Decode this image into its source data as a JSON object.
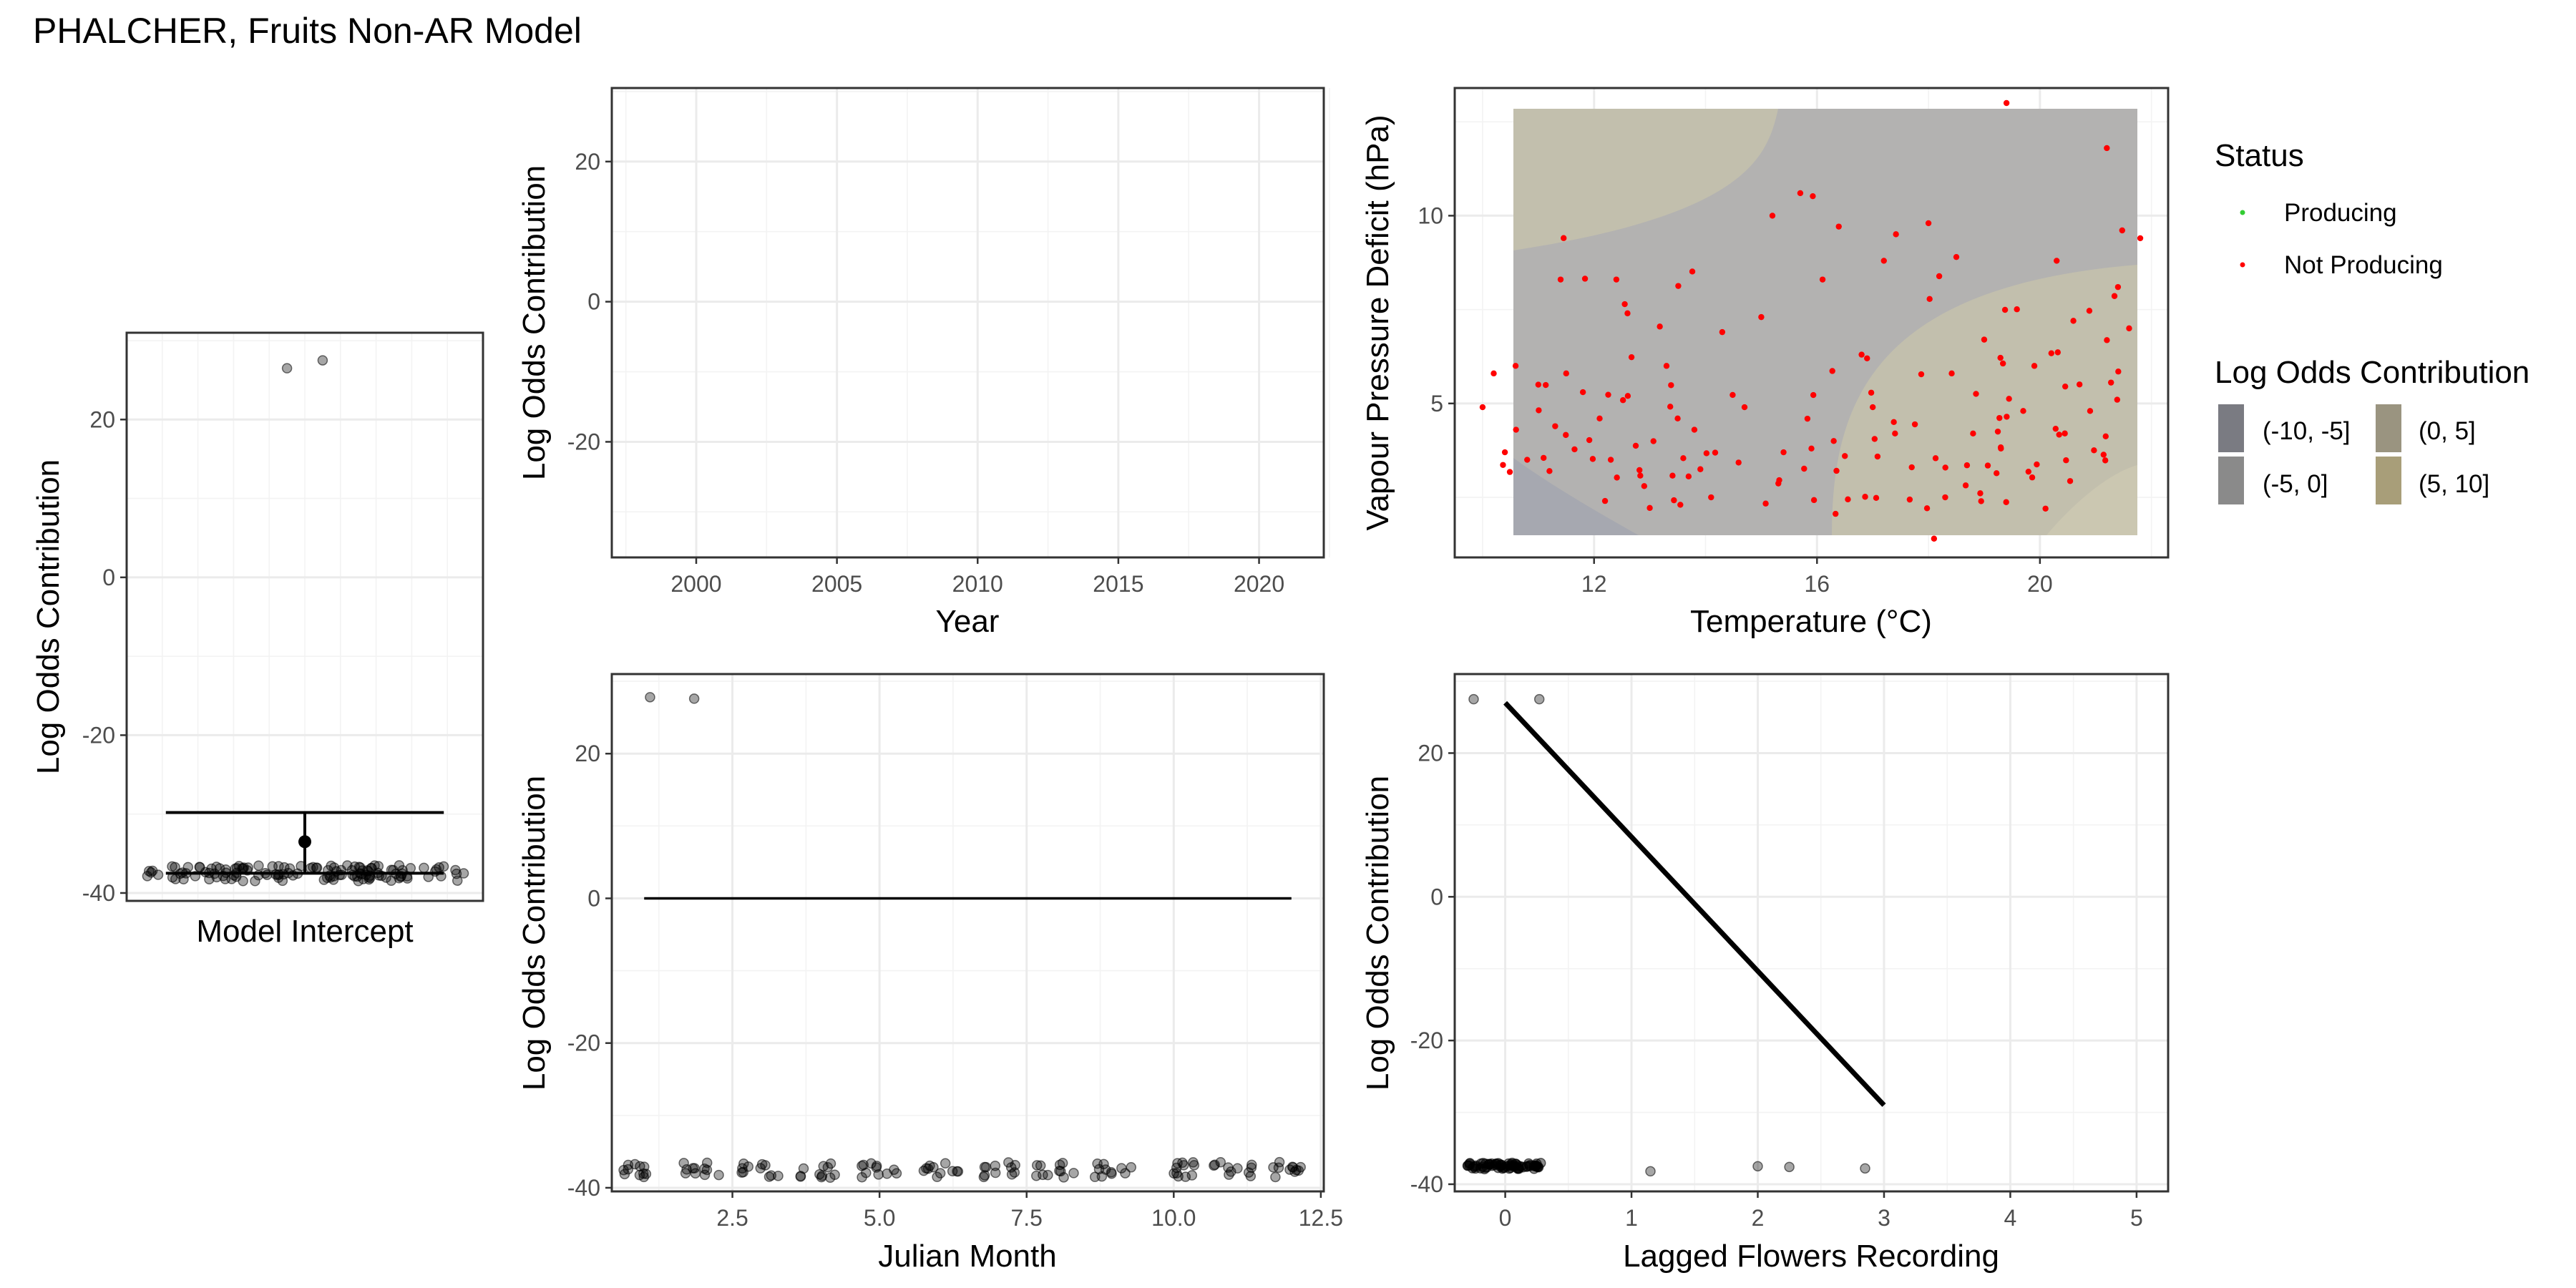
{
  "figure_title": "PHALCHER, Fruits Non-AR Model",
  "colors": {
    "grid": "#ebebeb",
    "frame": "#333333",
    "points": "#000000",
    "producing": "#33cc33",
    "not_producing": "#ff0000",
    "fill_neg10_neg5": "#7a7b82",
    "fill_neg5_0": "#8a8a8a",
    "fill_0_5": "#9a9480",
    "fill_5_10": "#a89e79"
  },
  "legend": {
    "status_title": "Status",
    "status_items": [
      {
        "label": "Producing",
        "color": "#33cc33"
      },
      {
        "label": "Not Producing",
        "color": "#ff0000"
      }
    ],
    "fill_title": "Log Odds Contribution",
    "fill_items": [
      {
        "label": "(-10, -5]",
        "color": "#7a7b82"
      },
      {
        "label": "(0, 5]",
        "color": "#9a9480"
      },
      {
        "label": "(-5, 0]",
        "color": "#8a8a8a"
      },
      {
        "label": "(5, 10]",
        "color": "#a89e79"
      }
    ]
  },
  "chart_data": [
    {
      "id": "intercept",
      "type": "scatter",
      "xlabel": "Model Intercept",
      "ylabel": "Log Odds Contribution",
      "ylim": [
        -41,
        31
      ],
      "yticks": [
        -40,
        -20,
        0,
        20
      ],
      "points_summary": "about 130 jittered points between -38.5 and -36.5",
      "points": [
        {
          "x": -0.05,
          "y": 26.5
        },
        {
          "x": 0.05,
          "y": 27.5
        }
      ],
      "error_bar": {
        "center": -33.5,
        "low": -37.5,
        "high": -29.8
      },
      "grid": true
    },
    {
      "id": "year",
      "type": "line",
      "xlabel": "Year",
      "ylabel": "Log Odds Contribution",
      "xlim": [
        1997,
        2022.3
      ],
      "xticks": [
        2000,
        2005,
        2010,
        2015,
        2020
      ],
      "ylim": [
        -36.5,
        30.5
      ],
      "yticks": [
        -20,
        0,
        20
      ],
      "series": [],
      "grid": true
    },
    {
      "id": "temp_vpd",
      "type": "heatmap",
      "xlabel": "Temperature (°C)",
      "ylabel": "Vapour Pressure Deficit (hPa)",
      "xlim": [
        9.5,
        22.3
      ],
      "xticks": [
        12,
        16,
        20
      ],
      "ylim": [
        0.9,
        13.4
      ],
      "yticks": [
        5,
        10
      ],
      "surface_extent": {
        "x": [
          10,
          21.8
        ],
        "y": [
          1.4,
          13
        ]
      },
      "points_summary": "about 160 points, all Not Producing",
      "points": [
        {
          "x": 10.0,
          "y": 4.9
        },
        {
          "x": 10.2,
          "y": 5.8
        },
        {
          "x": 10.4,
          "y": 3.7
        },
        {
          "x": 10.6,
          "y": 4.3
        },
        {
          "x": 10.8,
          "y": 3.5
        },
        {
          "x": 11.0,
          "y": 5.5
        },
        {
          "x": 11.2,
          "y": 3.2
        },
        {
          "x": 11.4,
          "y": 8.3
        },
        {
          "x": 11.5,
          "y": 5.8
        },
        {
          "x": 11.8,
          "y": 5.3
        },
        {
          "x": 12.1,
          "y": 4.6
        },
        {
          "x": 12.3,
          "y": 3.5
        },
        {
          "x": 12.4,
          "y": 8.3
        },
        {
          "x": 12.6,
          "y": 7.4
        },
        {
          "x": 12.9,
          "y": 2.8
        },
        {
          "x": 13.3,
          "y": 6.0
        },
        {
          "x": 13.5,
          "y": 4.6
        },
        {
          "x": 13.8,
          "y": 4.3
        },
        {
          "x": 14.1,
          "y": 2.5
        },
        {
          "x": 14.3,
          "y": 6.9
        },
        {
          "x": 14.7,
          "y": 4.9
        },
        {
          "x": 15.0,
          "y": 7.3
        },
        {
          "x": 15.2,
          "y": 10.0
        },
        {
          "x": 15.4,
          "y": 3.7
        },
        {
          "x": 15.7,
          "y": 10.6
        },
        {
          "x": 15.9,
          "y": 3.8
        },
        {
          "x": 16.1,
          "y": 8.3
        },
        {
          "x": 16.3,
          "y": 4.0
        },
        {
          "x": 16.5,
          "y": 3.6
        },
        {
          "x": 16.8,
          "y": 6.3
        },
        {
          "x": 17.0,
          "y": 4.9
        },
        {
          "x": 17.2,
          "y": 8.8
        },
        {
          "x": 17.4,
          "y": 4.2
        },
        {
          "x": 17.7,
          "y": 3.3
        },
        {
          "x": 18.0,
          "y": 9.8
        },
        {
          "x": 18.1,
          "y": 1.4
        },
        {
          "x": 18.3,
          "y": 2.5
        },
        {
          "x": 18.5,
          "y": 8.9
        },
        {
          "x": 18.8,
          "y": 4.2
        },
        {
          "x": 19.0,
          "y": 6.7
        },
        {
          "x": 19.3,
          "y": 3.8
        },
        {
          "x": 19.4,
          "y": 13.0
        },
        {
          "x": 19.7,
          "y": 4.8
        },
        {
          "x": 19.9,
          "y": 6.0
        },
        {
          "x": 20.1,
          "y": 2.2
        },
        {
          "x": 20.3,
          "y": 8.8
        },
        {
          "x": 20.6,
          "y": 7.2
        },
        {
          "x": 20.9,
          "y": 4.8
        },
        {
          "x": 21.2,
          "y": 11.8
        },
        {
          "x": 21.4,
          "y": 8.1
        },
        {
          "x": 21.6,
          "y": 7.0
        },
        {
          "x": 21.8,
          "y": 9.4
        }
      ],
      "grid": true
    },
    {
      "id": "julian_month",
      "type": "line",
      "xlabel": "Julian Month",
      "ylabel": "Log Odds Contribution",
      "xlim": [
        0.45,
        12.55
      ],
      "xticks": [
        2.5,
        5.0,
        7.5,
        10.0,
        12.5
      ],
      "ylim": [
        -40.5,
        31
      ],
      "yticks": [
        -40,
        -20,
        0,
        20
      ],
      "series": [
        {
          "x": [
            1,
            12
          ],
          "y": [
            0,
            0
          ]
        }
      ],
      "points": [
        {
          "x": 1.1,
          "y": 27.8
        },
        {
          "x": 1.85,
          "y": 27.6
        }
      ],
      "points_summary": "jittered clusters near each month between -38.5 and -36.5",
      "grid": true
    },
    {
      "id": "lagged_flowers",
      "type": "line",
      "xlabel": "Lagged Flowers Recording",
      "ylabel": "Log Odds Contribution",
      "xlim": [
        -0.4,
        5.25
      ],
      "xticks": [
        0,
        1,
        2,
        3,
        4,
        5
      ],
      "ylim": [
        -41,
        31
      ],
      "yticks": [
        -40,
        -20,
        0,
        20
      ],
      "series": [
        {
          "x": [
            0,
            3
          ],
          "y": [
            27,
            -29
          ]
        }
      ],
      "points": [
        {
          "x": -0.25,
          "y": 27.5
        },
        {
          "x": 0.27,
          "y": 27.5
        },
        {
          "x": 1.15,
          "y": -38.2
        },
        {
          "x": 2.0,
          "y": -37.5
        },
        {
          "x": 2.25,
          "y": -37.6
        },
        {
          "x": 2.85,
          "y": -37.8
        }
      ],
      "points_summary": "dense cluster at x between -0.3 and 0.3 near -37.5",
      "grid": true
    }
  ]
}
